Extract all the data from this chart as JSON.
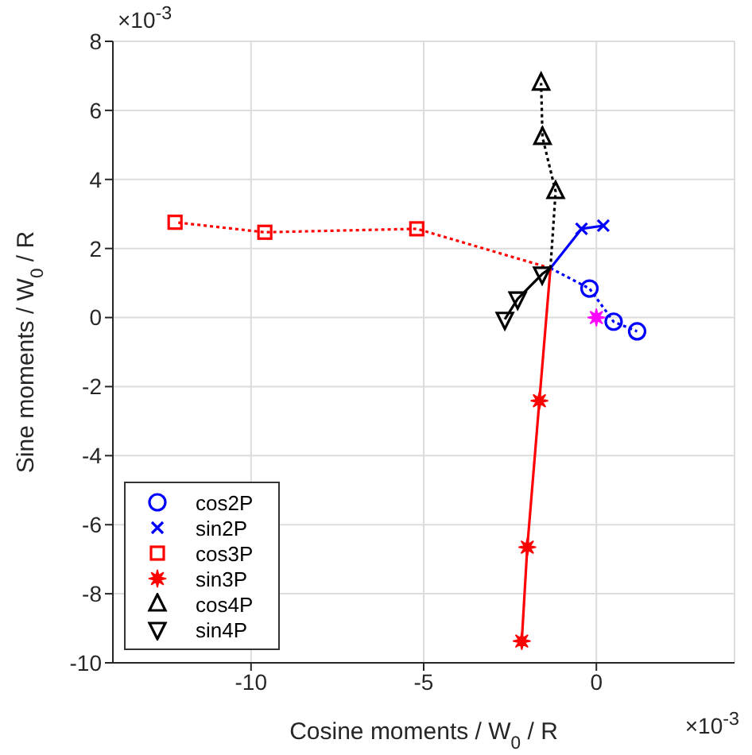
{
  "chart_data": {
    "type": "line",
    "xlabel": "Cosine moments / W$_{0}$ / R",
    "ylabel": "Sine moments / W$_{0}$ / R",
    "xlim": [
      -14,
      4
    ],
    "xticks": [
      -10,
      -5,
      0
    ],
    "ylim": [
      -10,
      8
    ],
    "yticks": [
      -10,
      -8,
      -6,
      -4,
      -2,
      0,
      2,
      4,
      6,
      8
    ],
    "grid": true,
    "legend": "bottom left",
    "annotations": [
      "×10$^{-3}$",
      "×10$^{-3}$"
    ],
    "series": [
      {
        "name": "cos2P",
        "color": "#0000ff",
        "marker": "circle",
        "line_style": "dotted",
        "x": [
          -1.33,
          -0.2,
          0.5,
          1.18
        ],
        "values": [
          1.43,
          0.84,
          -0.12,
          -0.4
        ]
      },
      {
        "name": "sin2P",
        "color": "#0000ff",
        "marker": "cross",
        "line_style": "solid",
        "x": [
          -1.33,
          -0.43,
          0.2
        ],
        "values": [
          1.43,
          2.57,
          2.66
        ]
      },
      {
        "name": "cos3P",
        "color": "#ff0000",
        "marker": "square",
        "line_style": "dotted",
        "x": [
          -1.33,
          -5.2,
          -9.6,
          -12.2
        ],
        "values": [
          1.43,
          2.57,
          2.47,
          2.76
        ]
      },
      {
        "name": "sin3P",
        "color": "#ff0000",
        "marker": "star",
        "line_style": "solid",
        "x": [
          -1.33,
          -1.65,
          -2.0,
          -2.16
        ],
        "values": [
          1.43,
          -2.41,
          -6.65,
          -9.37
        ]
      },
      {
        "name": "cos4P",
        "color": "#000000",
        "marker": "triangle",
        "line_style": "dotted",
        "x": [
          -1.33,
          -1.18,
          -1.56,
          -1.6
        ],
        "values": [
          1.43,
          3.65,
          5.22,
          6.79
        ]
      },
      {
        "name": "sin4P",
        "color": "#000000",
        "marker": "triangle-down",
        "line_style": "solid",
        "x": [
          -1.33,
          -1.57,
          -2.28,
          -2.65
        ],
        "values": [
          1.43,
          1.26,
          0.54,
          -0.05
        ]
      },
      {
        "type": "scatter",
        "color": "#ff00ff",
        "marker": "star",
        "x": [
          0
        ],
        "values": [
          0
        ]
      }
    ]
  }
}
